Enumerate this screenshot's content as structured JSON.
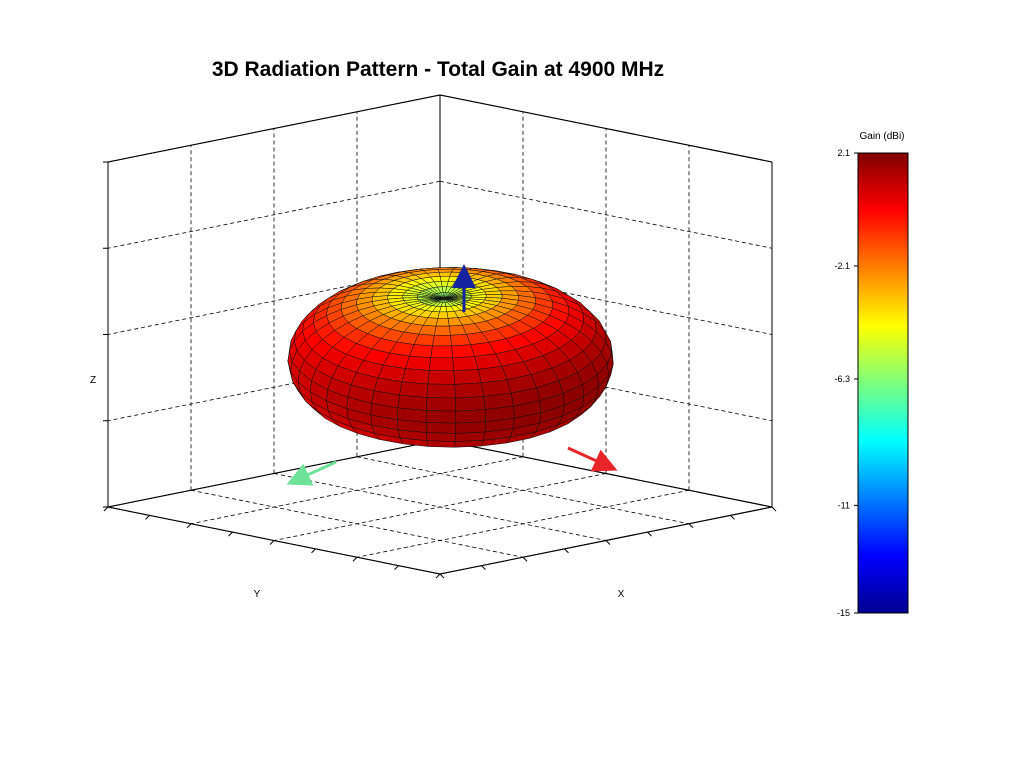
{
  "chart_data": {
    "type": "surface3d",
    "title": "3D Radiation Pattern - Total Gain at 4900 MHz",
    "axes": {
      "xlabel": "X",
      "ylabel": "Y",
      "zlabel": "Z",
      "grid": true,
      "box": "open 3D box with dashed gridlines",
      "vectors": [
        {
          "axis": "X",
          "color": "#e8262a"
        },
        {
          "axis": "Y",
          "color": "#6de39a"
        },
        {
          "axis": "Z",
          "color": "#16239e"
        }
      ]
    },
    "colorbar": {
      "title": "Gain (dBi)",
      "tick_labels": [
        "2.1",
        "-2.1",
        "-6.3",
        "-11",
        "-15"
      ],
      "ticks": [
        2.1,
        -2.1,
        -6.3,
        -11,
        -15
      ],
      "range": [
        -15,
        2.1
      ],
      "colormap": "jet"
    },
    "pattern": {
      "shape": "toroidal (donut) lobe, maximum around the horizon, null along +Z",
      "max_gain_dbi": 2.1,
      "min_gain_dbi": -15,
      "zenith_gain_dbi": -6.3,
      "horizon_gain_dbi": 1.0
    }
  }
}
